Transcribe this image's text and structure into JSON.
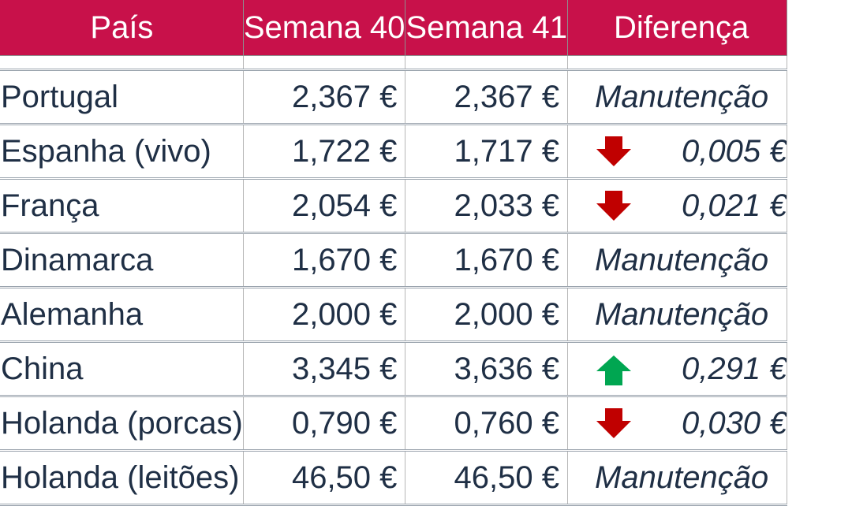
{
  "table": {
    "headers": {
      "country": "País",
      "week40": "Semana 40",
      "week41": "Semana 41",
      "difference": "Diferença"
    },
    "rows": [
      {
        "country": "Portugal",
        "week40": "2,367 €",
        "week41": "2,367 €",
        "direction": "none",
        "difference": "Manutenção"
      },
      {
        "country": "Espanha (vivo)",
        "week40": "1,722 €",
        "week41": "1,717 €",
        "direction": "down",
        "difference": "0,005 €"
      },
      {
        "country": "França",
        "week40": "2,054 €",
        "week41": "2,033 €",
        "direction": "down",
        "difference": "0,021 €"
      },
      {
        "country": "Dinamarca",
        "week40": "1,670 €",
        "week41": "1,670 €",
        "direction": "none",
        "difference": "Manutenção"
      },
      {
        "country": "Alemanha",
        "week40": "2,000 €",
        "week41": "2,000 €",
        "direction": "none",
        "difference": "Manutenção"
      },
      {
        "country": "China",
        "week40": "3,345 €",
        "week41": "3,636 €",
        "direction": "up",
        "difference": "0,291 €"
      },
      {
        "country": "Holanda (porcas)",
        "week40": "0,790 €",
        "week41": "0,760 €",
        "direction": "down",
        "difference": "0,030 €"
      },
      {
        "country": "Holanda (leitões)",
        "week40": "46,50 €",
        "week41": "46,50 €",
        "direction": "none",
        "difference": "Manutenção"
      }
    ]
  },
  "colors": {
    "header_bg": "#c8114a",
    "header_text": "#ffffff",
    "body_text": "#1f2f45",
    "arrow_down": "#c00000",
    "arrow_up": "#00a651"
  },
  "icons": {
    "down": "arrow-down-icon",
    "up": "arrow-up-icon"
  }
}
